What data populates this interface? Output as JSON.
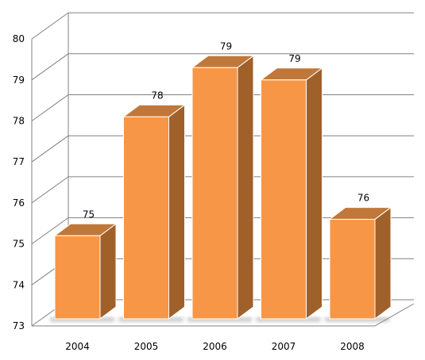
{
  "chart_data": {
    "type": "bar",
    "categories": [
      "2004",
      "2005",
      "2006",
      "2007",
      "2008"
    ],
    "values": [
      75.2,
      78.1,
      79.3,
      79.0,
      75.6
    ],
    "data_labels": [
      "75",
      "78",
      "79",
      "79",
      "76"
    ],
    "y_ticks": [
      "73",
      "74",
      "75",
      "76",
      "77",
      "78",
      "79",
      "80"
    ],
    "ylim": [
      73,
      80
    ],
    "grid": true,
    "style": "3d-column"
  },
  "colors": {
    "bar_front": "#f79646",
    "bar_top": "#c0783a",
    "bar_side": "#a0602a",
    "bar_edge": "#ffffff",
    "grid": "#808080"
  }
}
